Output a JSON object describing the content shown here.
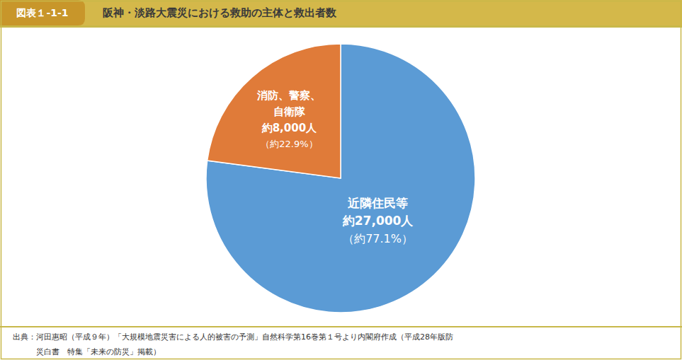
{
  "chart_data": {
    "type": "pie",
    "title": "阪神・淡路大震災における救助の主体と救出者数",
    "subtitle": "図表１-1-1",
    "values": [
      77.1,
      22.9
    ],
    "colors": [
      "#5B9BD5",
      "#E07B39"
    ],
    "data_labels": true,
    "value_labels": [
      [
        "近隣住民等",
        "約27,000人",
        "（約77.1%）"
      ],
      [
        "消防、警察、",
        "自衛隊",
        "約8,000人",
        "（約22.9%）"
      ]
    ],
    "annotations": [
      "出典：河田惠昭（平成９年）「大規模地震災害による人的被害の予測」自然科学第16巻第１号より内閣府作成（平成28年版防",
      "　　　災白書　特集「未来の防災」掲載）"
    ]
  }
}
